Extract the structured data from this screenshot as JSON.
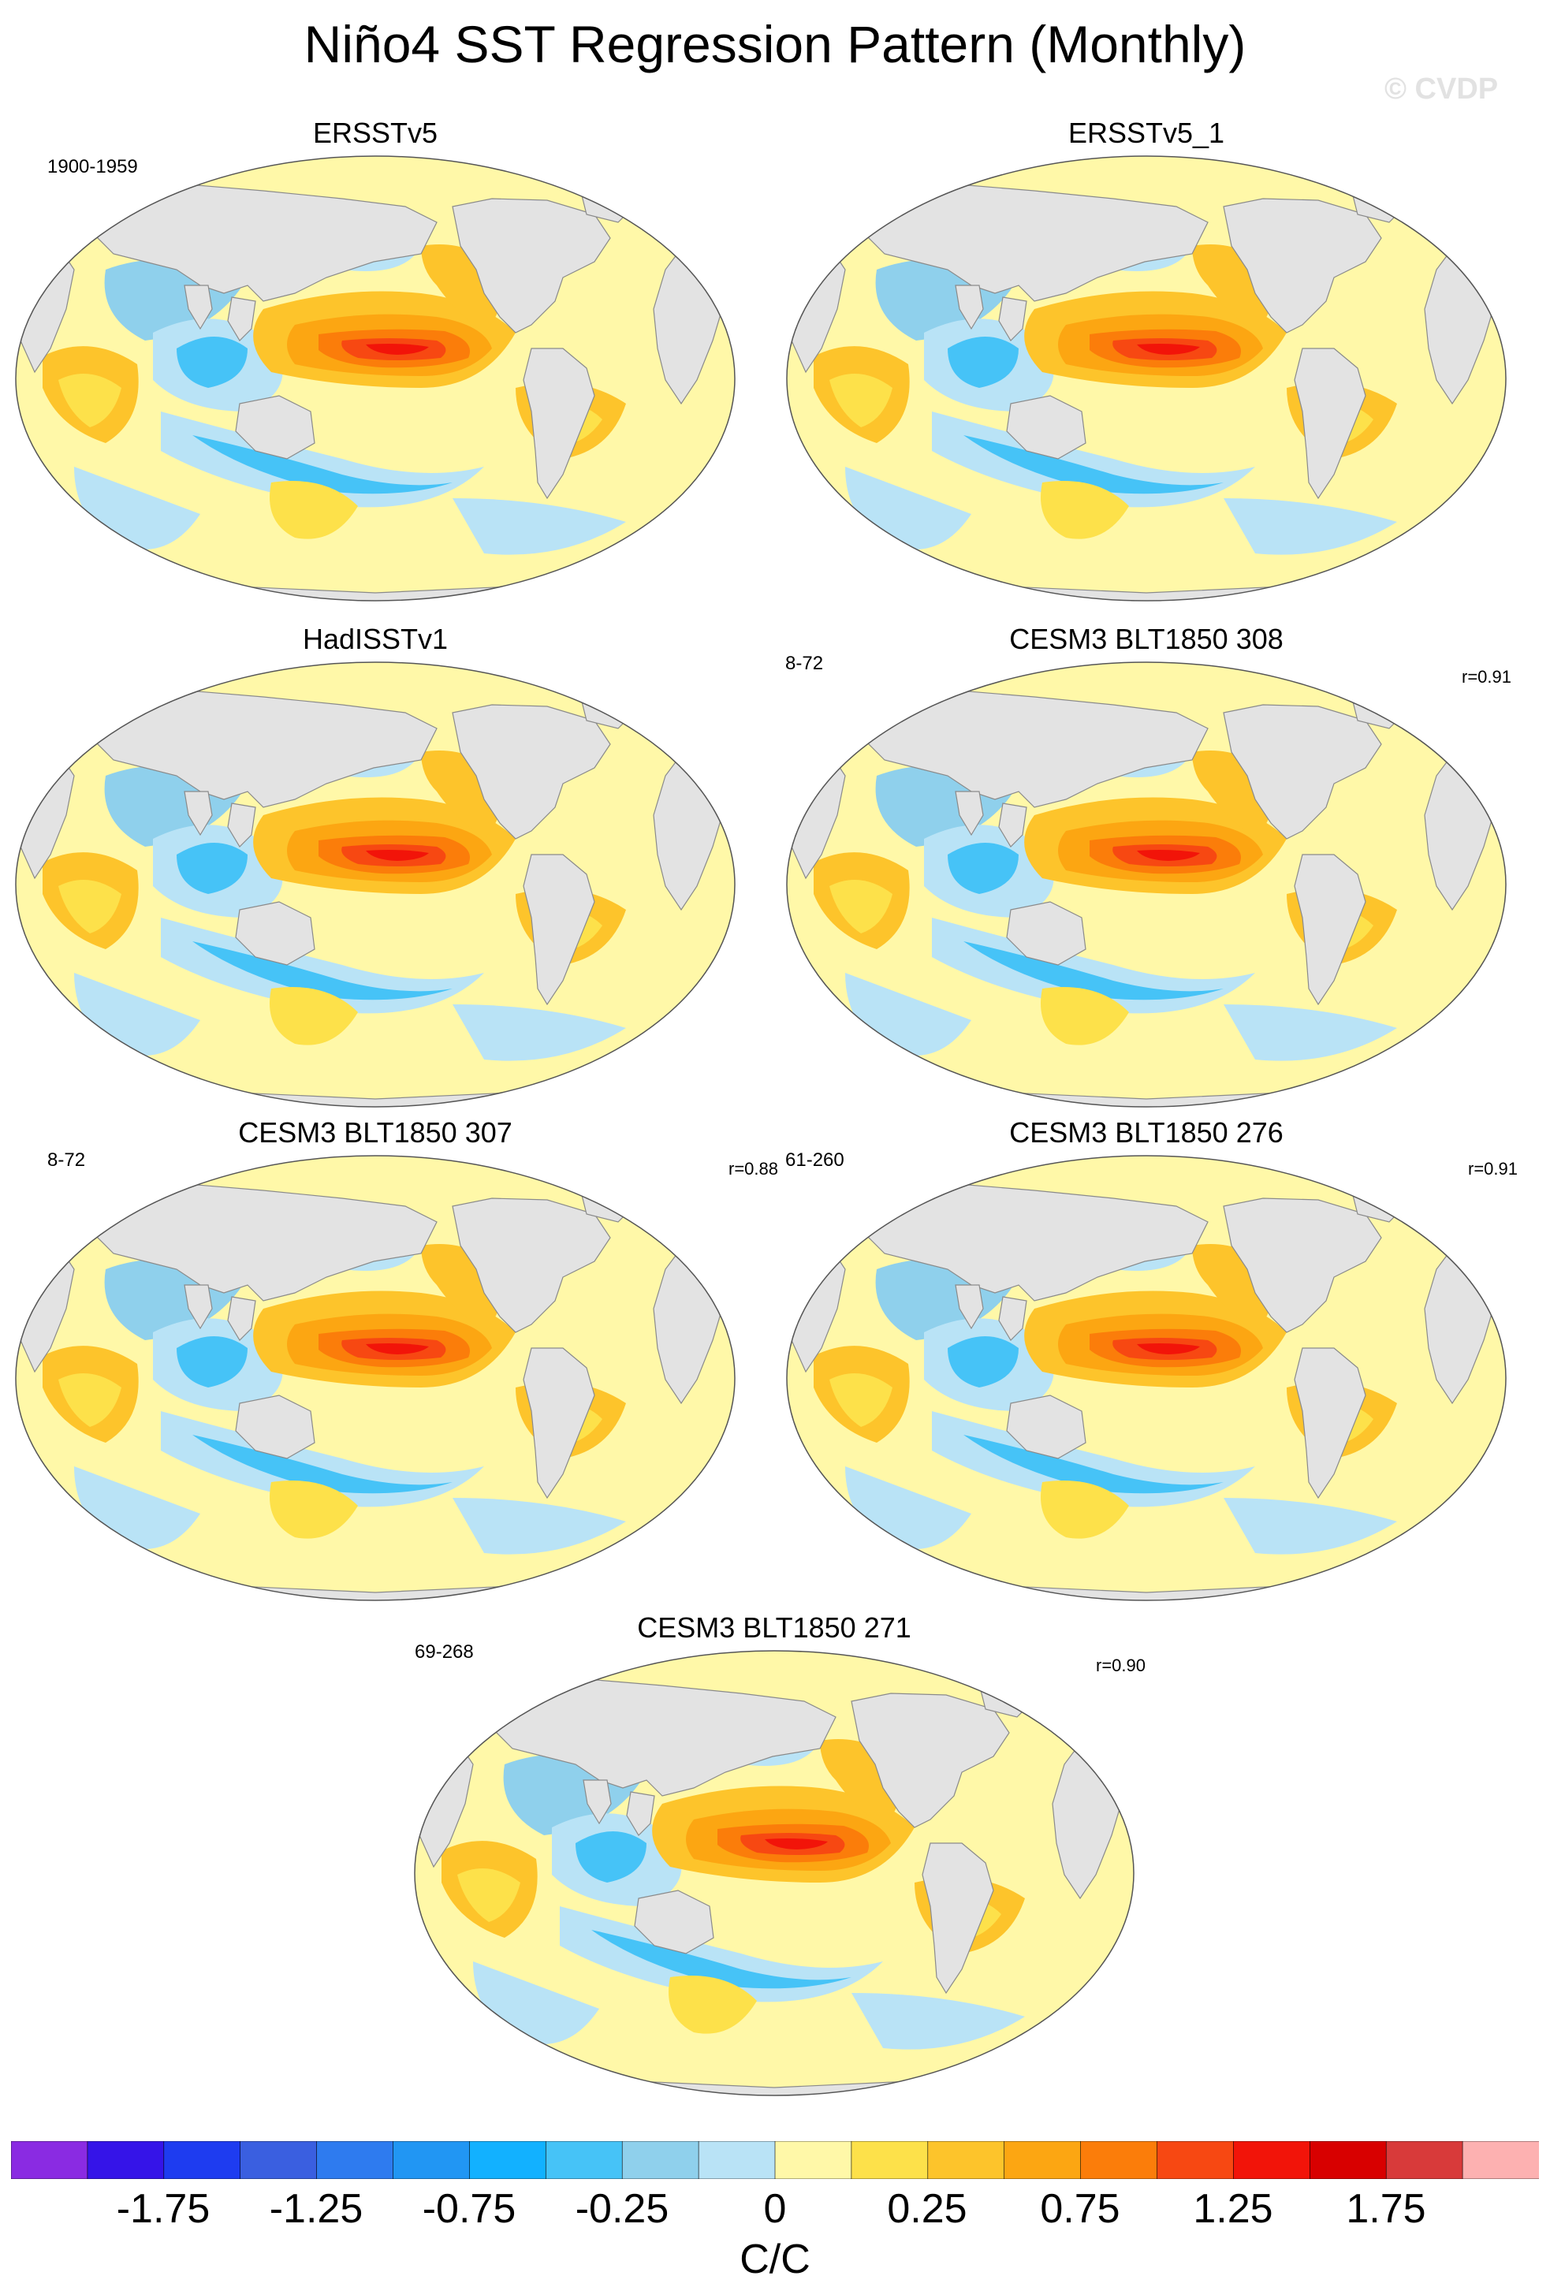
{
  "title": "Niño4 SST Regression Pattern (Monthly)",
  "copyright": "© CVDP",
  "colors": {
    "ocean_levels": [
      "#8a2be2",
      "#3514e8",
      "#1e3cf0",
      "#3a5fe0",
      "#2e7bef",
      "#2196f3",
      "#12b1ff",
      "#46c3f7",
      "#8fd0ec",
      "#b9e3f6",
      "#fff8a8",
      "#fde14a",
      "#fdc42b",
      "#fca612",
      "#fb7d0a",
      "#f74812",
      "#f21409",
      "#d80000",
      "#d83a3a",
      "#fdb1b1"
    ],
    "land": "#e3e3e3",
    "coast": "#8a8a8a"
  },
  "panels": [
    {
      "title": "ERSSTv5",
      "period": "1900-1959",
      "r": ""
    },
    {
      "title": "ERSSTv5_1",
      "period": "",
      "r": ""
    },
    {
      "title": "HadISSTv1",
      "period": "",
      "r": ""
    },
    {
      "title": "CESM3 BLT1850 308",
      "period": "8-72",
      "r": "r=0.91"
    },
    {
      "title": "CESM3 BLT1850 307",
      "period": "8-72",
      "r": "r=0.88"
    },
    {
      "title": "CESM3 BLT1850 276",
      "period": "61-260",
      "r": "r=0.91"
    },
    {
      "title": "CESM3 BLT1850 271",
      "period": "69-268",
      "r": "r=0.90"
    }
  ],
  "colorbar": {
    "labels": [
      "-1.75",
      "-1.25",
      "-0.75",
      "-0.25",
      "0",
      "0.25",
      "0.75",
      "1.25",
      "1.75"
    ],
    "units": "C/C"
  }
}
